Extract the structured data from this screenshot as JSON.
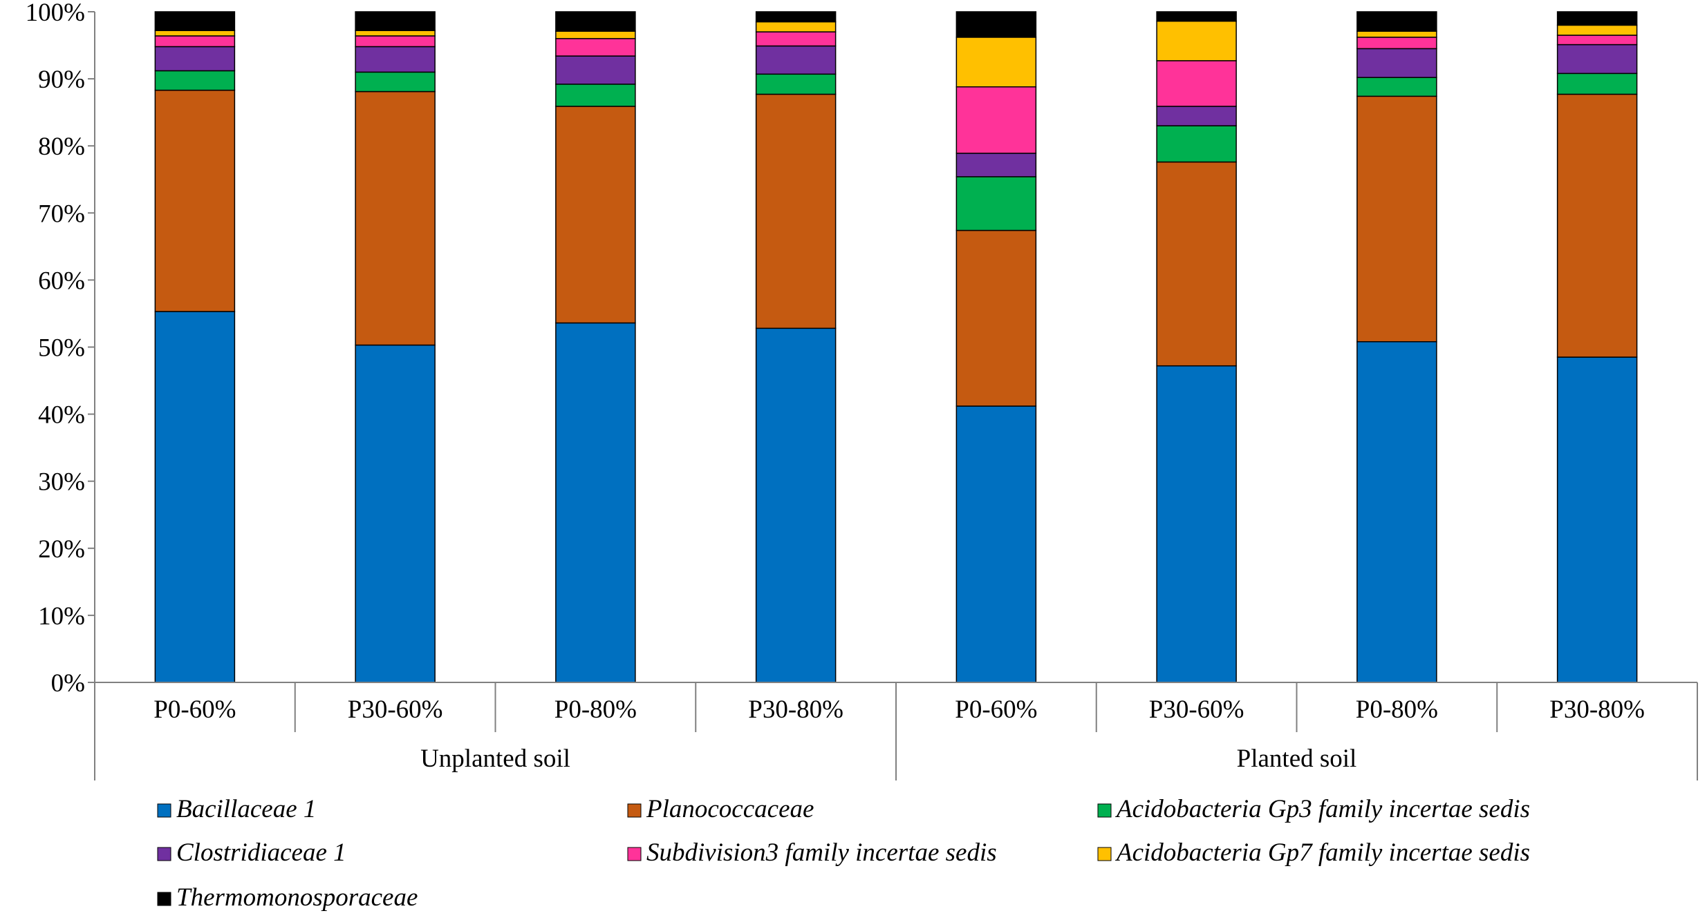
{
  "chart_data": {
    "type": "bar",
    "stacked": true,
    "percent": true,
    "title": "",
    "xlabel": "",
    "ylabel": "",
    "ylim": [
      0,
      100
    ],
    "ytick_labels": [
      "0%",
      "10%",
      "20%",
      "30%",
      "40%",
      "50%",
      "60%",
      "70%",
      "80%",
      "90%",
      "100%"
    ],
    "categories": [
      "P0-60%",
      "P30-60%",
      "P0-80%",
      "P30-80%",
      "P0-60%",
      "P30-60%",
      "P0-80%",
      "P30-80%"
    ],
    "groups": [
      {
        "label": "Unplanted soil",
        "span": [
          0,
          3
        ]
      },
      {
        "label": "Planted soil",
        "span": [
          4,
          7
        ]
      }
    ],
    "legend_position": "bottom",
    "series": [
      {
        "name": "Bacillaceae 1",
        "color": "#0070C0",
        "values": [
          55.3,
          50.3,
          53.6,
          52.8,
          41.2,
          47.2,
          50.8,
          48.5
        ]
      },
      {
        "name": "Planococcaceae",
        "color": "#C55A11",
        "values": [
          33.0,
          37.8,
          32.3,
          34.9,
          26.2,
          30.4,
          36.6,
          39.2
        ]
      },
      {
        "name": "Acidobacteria Gp3 family incertae sedis",
        "color": "#00B050",
        "values": [
          2.9,
          2.9,
          3.3,
          3.0,
          8.0,
          5.4,
          2.8,
          3.1
        ]
      },
      {
        "name": "Clostridiaceae 1",
        "color": "#7030A0",
        "values": [
          3.6,
          3.8,
          4.2,
          4.2,
          3.5,
          2.9,
          4.3,
          4.3
        ]
      },
      {
        "name": "Subdivision3 family incertae sedis",
        "color": "#FF3399",
        "values": [
          1.6,
          1.6,
          2.6,
          2.1,
          9.9,
          6.8,
          1.7,
          1.4
        ]
      },
      {
        "name": "Acidobacteria Gp7 family incertae sedis",
        "color": "#FFC000",
        "values": [
          0.8,
          0.8,
          1.1,
          1.5,
          7.4,
          5.9,
          0.9,
          1.5
        ]
      },
      {
        "name": "Thermomonosporaceae",
        "color": "#000000",
        "values": [
          2.8,
          2.8,
          2.9,
          1.5,
          3.8,
          1.4,
          2.9,
          2.0
        ]
      }
    ]
  }
}
